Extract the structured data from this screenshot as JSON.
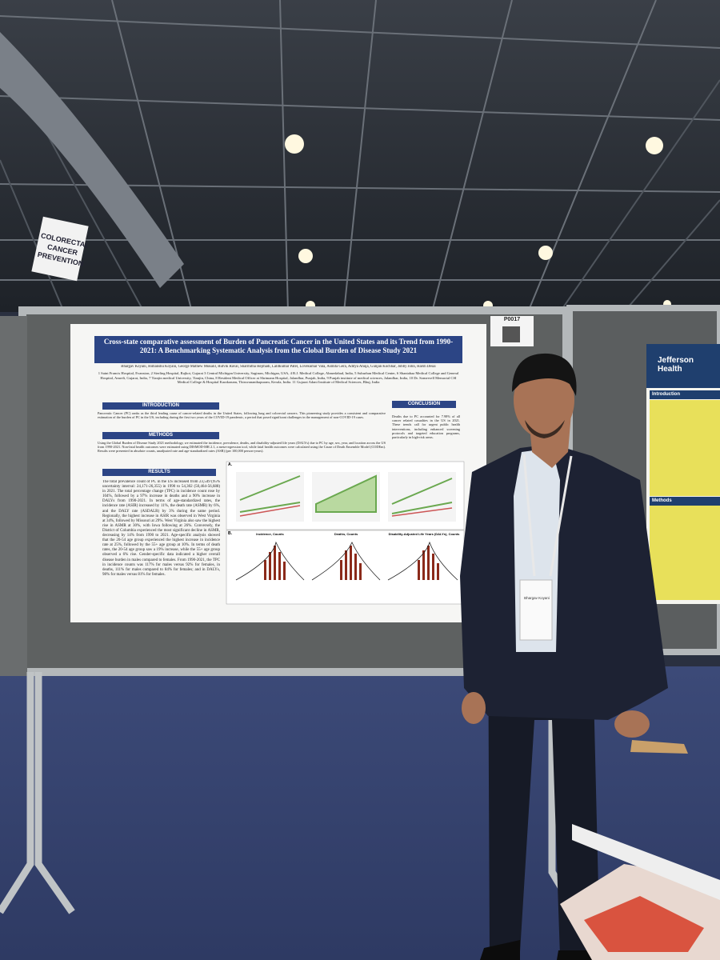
{
  "sign": "COLORECTAL CANCER PREVENTION",
  "poster_id": "P0017",
  "poster": {
    "title": "Cross-state comparative assessment of Burden of Pancreatic Cancer in the United States and its Trend from 1990-2021: A Benchmarking Systematic Analysis from the Global Burden of Disease Study 2021",
    "authors": "Bhargav Koyani, Himanshu Koyani, George Mathew Mukalil, Rutvik Raval, Sharmitha Hejmadi, Lalitkumar Patel, Lovekumar Vala, Asmita Gera, Aditya Ahuja, Gunjan Kochhar, Jobby John, Harsh Desai",
    "affiliations": "1 Saint Francis Hospital, Evanston, 2 Sterling Hospital, Rajkot, Gujarat 3 Central Michigan University, Saginaw, Michigan, USA, 4 B.J. Medical College, Ahmedabad, India, 5 Suburban Medical Center, 6 Shantabaa Medical College and General Hospital, Amreli, Gujarat, India, 7 Tianjin medical University, Tianjin, China, 8 Resident Medical Officer at Shrimann Hospital, Jalandhar, Punjab, India, 9 Punjab institute of medical sciences, Jalandhar, India, 10 Dr. Somervell Memorial CSI Medical College & Hospital Karakonam, Thiruvananthapuram, Kerala, India. 11 Gujarat Adani Institute of Medical Sciences, Bhuj, India",
    "sections": [
      {
        "heading": "INTRODUCTION",
        "text": "Pancreatic Cancer (PC) ranks as the third leading cause of cancer-related deaths in the United States, following lung and colorectal cancers. This pioneering study provides a consistent and comparative estimation of the burden of PC in the US, including during the first two years of the COVID-19 pandemic, a period that posed significant challenges in the management of non-COVID-19 cases."
      },
      {
        "heading": "METHODS",
        "text": "Using the Global Burden of Disease Study 2021 methodology, we estimated the incidence, prevalence, deaths, and disability-adjusted life years (DALYs) due to PC by age, sex, year, and location across the US from 1990-2021. Non-fatal health outcomes were estimated using DISMOD-MR 2.1, a meta-regression tool, while fatal health outcomes were calculated using the Cause of Death Ensemble Model (CODEm). Results were presented in absolute counts, unadjusted rate and age-standardized rates (ASR) (per 100,000 person-years)."
      },
      {
        "heading": "RESULTS",
        "text": "The total prevalence count of PC in the US increased from 23,549 (95% uncertainty interval: 24,171-26,355) in 1990 to 54,302 (50,464-56,688) in 2021. The total percentage change (TPC) in incidence count rose by 104%, followed by a 97% increase in deaths and a 90% increase in DALYs from 1990-2021. In terms of age-standardized rates, the incidence rate (ASIR) increased by 11%, the death rate (ASMR) by 6%, and the DALY rate (ASDALR) by 3% during the same period. Regionally, the highest increase in ASIR was observed in West Virginia at 34%, followed by Missouri at 29%. West Virginia also saw the highest rise in ASMR at 30%, with Iowa following at 26%. Conversely, the District of Columbia experienced the most significant decline in ASMR, decreasing by 14% from 1990 to 2021. Age-specific analysis showed that the 20-54 age group experienced the highest increase in incidence rate at 25%, followed by the 55+ age group at 10%. In terms of death rates, the 20-54 age group saw a 19% increase, while the 55+ age group observed a 6% rise. Gender-specific data indicated a higher overall disease burden in males compared to females. From 1990-2021, the TPC in incidence counts was 117% for males versus 92% for females, in deaths, 111% for males compared to 84% for females; and in DALYs, 98% for males versus 81% for females."
      },
      {
        "heading": "CONCLUSION",
        "text": "Deaths due to PC accounted for 7.98% of all cancer related casualties in the US in 2021. These trends call for urgent public health interventions, including enhanced screening protocols and targeted education programs, particularly in high-risk areas."
      }
    ],
    "panels": [
      "A.",
      "B."
    ],
    "chart_titles": [
      "Incidence, Counts",
      "Deaths, Counts",
      "Disability-Adjusted Life Years (DALYs), Counts"
    ]
  },
  "badge": "Bhargav Koyani",
  "right_poster": {
    "logo": "Jefferson Health",
    "headings": [
      "Introduction",
      "Methods"
    ]
  }
}
